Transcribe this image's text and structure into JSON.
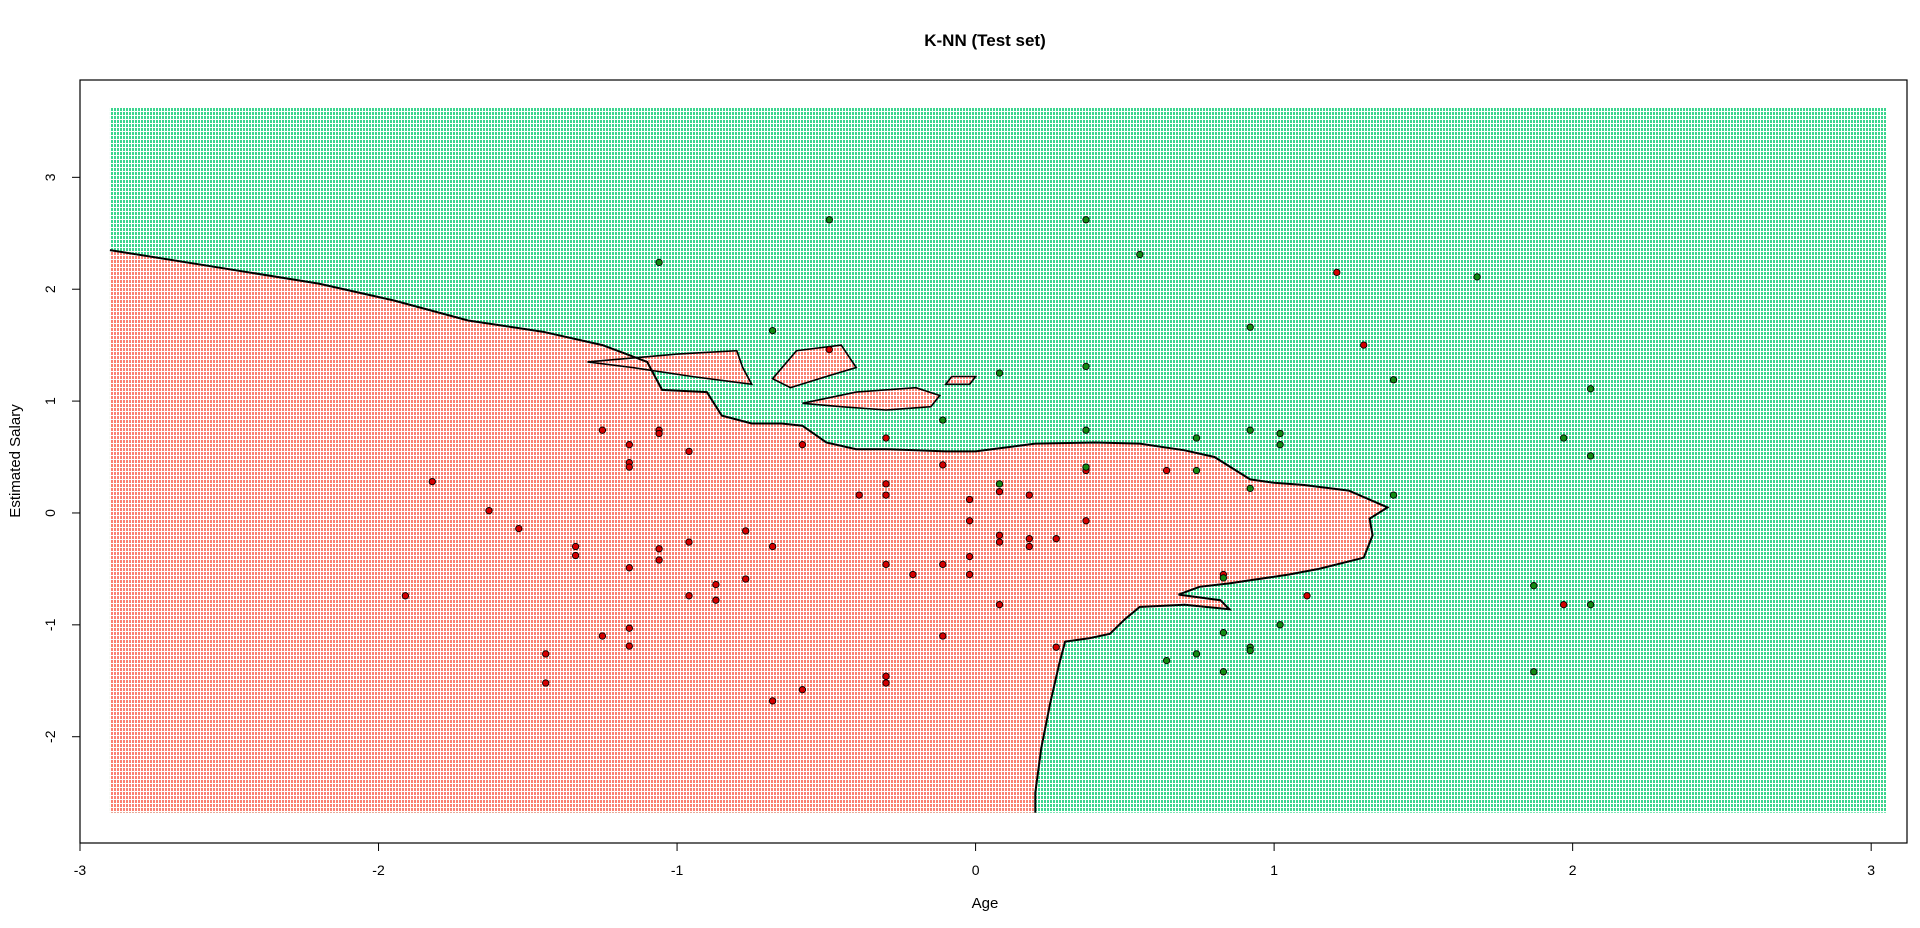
{
  "chart_data": {
    "type": "scatter",
    "title": "K-NN (Test set)",
    "xlabel": "Age",
    "ylabel": "Estimated Salary",
    "xlim": [
      -3,
      3.12
    ],
    "ylim": [
      -2.95,
      3.87
    ],
    "x_ticks": [
      -3,
      -2,
      -1,
      0,
      1,
      2,
      3
    ],
    "y_ticks": [
      -2,
      -1,
      0,
      1,
      2,
      3
    ],
    "grid": false,
    "legend": "none",
    "colors": {
      "region_class_0": "#fa8072",
      "region_class_1": "#3cd58f",
      "point_class_0": "#d40000",
      "point_class_1": "#138a13",
      "point_outline": "#000000",
      "boundary": "#000000"
    },
    "background_grid_range": {
      "x": [
        -2.9,
        3.05
      ],
      "y": [
        -2.68,
        3.62
      ]
    },
    "decision_boundary": [
      [
        -2.9,
        2.35
      ],
      [
        -2.55,
        2.2
      ],
      [
        -2.2,
        2.05
      ],
      [
        -1.95,
        1.9
      ],
      [
        -1.7,
        1.72
      ],
      [
        -1.45,
        1.62
      ],
      [
        -1.25,
        1.5
      ],
      [
        -1.1,
        1.35
      ],
      [
        -1.05,
        1.1
      ],
      [
        -0.9,
        1.08
      ],
      [
        -0.85,
        0.87
      ],
      [
        -0.75,
        0.8
      ],
      [
        -0.65,
        0.8
      ],
      [
        -0.58,
        0.78
      ],
      [
        -0.5,
        0.63
      ],
      [
        -0.4,
        0.57
      ],
      [
        -0.3,
        0.57
      ],
      [
        -0.1,
        0.55
      ],
      [
        0.0,
        0.55
      ],
      [
        0.2,
        0.62
      ],
      [
        0.4,
        0.63
      ],
      [
        0.55,
        0.62
      ],
      [
        0.7,
        0.56
      ],
      [
        0.8,
        0.5
      ],
      [
        0.92,
        0.3
      ],
      [
        1.0,
        0.27
      ],
      [
        1.1,
        0.25
      ],
      [
        1.25,
        0.2
      ],
      [
        1.38,
        0.05
      ],
      [
        1.32,
        -0.05
      ],
      [
        1.33,
        -0.2
      ],
      [
        1.3,
        -0.4
      ],
      [
        1.15,
        -0.5
      ],
      [
        1.05,
        -0.55
      ],
      [
        0.85,
        -0.63
      ],
      [
        0.75,
        -0.66
      ],
      [
        0.68,
        -0.73
      ],
      [
        0.82,
        -0.78
      ],
      [
        0.85,
        -0.86
      ],
      [
        0.7,
        -0.82
      ],
      [
        0.55,
        -0.84
      ],
      [
        0.5,
        -0.95
      ],
      [
        0.45,
        -1.08
      ],
      [
        0.38,
        -1.12
      ],
      [
        0.3,
        -1.15
      ],
      [
        0.28,
        -1.35
      ],
      [
        0.25,
        -1.7
      ],
      [
        0.22,
        -2.1
      ],
      [
        0.2,
        -2.5
      ],
      [
        0.2,
        -2.68
      ]
    ],
    "islands": [
      [
        [
          -0.68,
          1.2
        ],
        [
          -0.6,
          1.45
        ],
        [
          -0.45,
          1.5
        ],
        [
          -0.4,
          1.3
        ],
        [
          -0.5,
          1.22
        ],
        [
          -0.62,
          1.12
        ]
      ],
      [
        [
          -0.58,
          0.98
        ],
        [
          -0.4,
          1.08
        ],
        [
          -0.2,
          1.12
        ],
        [
          -0.12,
          1.05
        ],
        [
          -0.15,
          0.95
        ],
        [
          -0.3,
          0.92
        ],
        [
          -0.45,
          0.95
        ]
      ],
      [
        [
          -1.3,
          1.35
        ],
        [
          -1.0,
          1.42
        ],
        [
          -0.8,
          1.45
        ],
        [
          -0.78,
          1.3
        ],
        [
          -0.75,
          1.15
        ],
        [
          -0.95,
          1.22
        ],
        [
          -1.15,
          1.3
        ]
      ],
      [
        [
          -0.08,
          1.22
        ],
        [
          0.0,
          1.22
        ],
        [
          -0.02,
          1.15
        ],
        [
          -0.1,
          1.15
        ]
      ]
    ],
    "series": [
      {
        "class": 0,
        "points": [
          [
            -1.91,
            -0.74
          ],
          [
            -1.82,
            0.28
          ],
          [
            -1.63,
            0.02
          ],
          [
            -1.53,
            -0.14
          ],
          [
            -1.44,
            -1.26
          ],
          [
            -1.44,
            -1.52
          ],
          [
            -1.34,
            -0.3
          ],
          [
            -1.34,
            -0.38
          ],
          [
            -1.25,
            0.74
          ],
          [
            -1.25,
            -1.1
          ],
          [
            -1.16,
            0.61
          ],
          [
            -1.16,
            0.45
          ],
          [
            -1.16,
            0.41
          ],
          [
            -1.16,
            -0.49
          ],
          [
            -1.16,
            -1.03
          ],
          [
            -1.16,
            -1.19
          ],
          [
            -1.06,
            0.74
          ],
          [
            -1.06,
            0.71
          ],
          [
            -1.06,
            -0.32
          ],
          [
            -1.06,
            -0.42
          ],
          [
            -0.96,
            0.55
          ],
          [
            -0.96,
            -0.26
          ],
          [
            -0.96,
            -0.74
          ],
          [
            -0.87,
            -0.64
          ],
          [
            -0.87,
            -0.78
          ],
          [
            -0.77,
            -0.16
          ],
          [
            -0.77,
            -0.59
          ],
          [
            -0.68,
            -0.3
          ],
          [
            -0.68,
            -1.68
          ],
          [
            -0.58,
            0.61
          ],
          [
            -0.58,
            -1.58
          ],
          [
            -0.49,
            1.46
          ],
          [
            -0.39,
            0.16
          ],
          [
            -0.3,
            0.67
          ],
          [
            -0.3,
            0.26
          ],
          [
            -0.3,
            0.16
          ],
          [
            -0.3,
            -0.46
          ],
          [
            -0.3,
            -1.46
          ],
          [
            -0.3,
            -1.52
          ],
          [
            -0.21,
            -0.55
          ],
          [
            -0.11,
            -0.46
          ],
          [
            -0.11,
            -1.1
          ],
          [
            -0.11,
            0.43
          ],
          [
            -0.02,
            0.12
          ],
          [
            -0.02,
            -0.07
          ],
          [
            -0.02,
            -0.39
          ],
          [
            -0.02,
            -0.55
          ],
          [
            0.08,
            0.19
          ],
          [
            0.08,
            -0.2
          ],
          [
            0.08,
            -0.26
          ],
          [
            0.08,
            -0.82
          ],
          [
            0.18,
            0.16
          ],
          [
            0.18,
            -0.23
          ],
          [
            0.18,
            -0.3
          ],
          [
            0.27,
            -0.23
          ],
          [
            0.27,
            -1.2
          ],
          [
            0.37,
            0.41
          ],
          [
            0.37,
            0.38
          ],
          [
            0.37,
            -0.07
          ],
          [
            0.64,
            0.38
          ],
          [
            0.83,
            -0.55
          ],
          [
            1.11,
            -0.74
          ],
          [
            1.21,
            2.15
          ],
          [
            1.3,
            1.5
          ],
          [
            1.97,
            -0.82
          ]
        ]
      },
      {
        "class": 1,
        "points": [
          [
            -1.06,
            2.24
          ],
          [
            -0.68,
            1.63
          ],
          [
            -0.49,
            2.62
          ],
          [
            -0.11,
            0.83
          ],
          [
            0.08,
            1.25
          ],
          [
            0.08,
            0.26
          ],
          [
            0.37,
            2.62
          ],
          [
            0.37,
            1.31
          ],
          [
            0.37,
            0.74
          ],
          [
            0.37,
            0.41
          ],
          [
            0.55,
            2.31
          ],
          [
            0.64,
            -1.32
          ],
          [
            0.74,
            0.67
          ],
          [
            0.74,
            0.38
          ],
          [
            0.74,
            -1.26
          ],
          [
            0.83,
            -0.58
          ],
          [
            0.83,
            -1.07
          ],
          [
            0.83,
            -1.42
          ],
          [
            0.92,
            1.66
          ],
          [
            0.92,
            0.74
          ],
          [
            0.92,
            0.22
          ],
          [
            0.92,
            -1.2
          ],
          [
            0.92,
            -1.23
          ],
          [
            1.02,
            0.71
          ],
          [
            1.02,
            0.61
          ],
          [
            1.02,
            -1.0
          ],
          [
            1.4,
            1.19
          ],
          [
            1.4,
            0.16
          ],
          [
            1.68,
            2.11
          ],
          [
            1.87,
            -0.65
          ],
          [
            1.87,
            -1.42
          ],
          [
            1.97,
            0.67
          ],
          [
            2.06,
            1.11
          ],
          [
            2.06,
            0.51
          ],
          [
            2.06,
            -0.82
          ]
        ]
      }
    ]
  }
}
